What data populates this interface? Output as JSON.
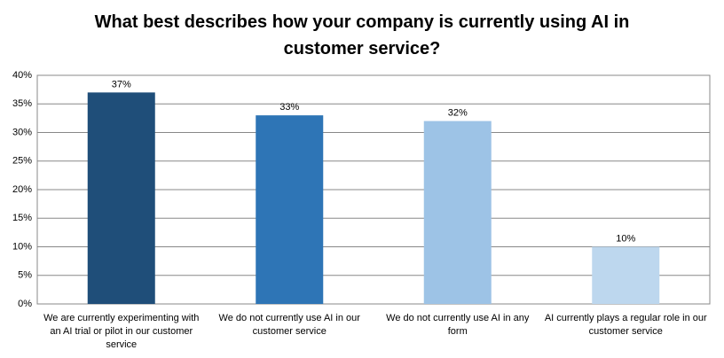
{
  "chart_data": {
    "type": "bar",
    "title": "What best describes how your company is currently using AI in customer service?",
    "categories": [
      "We are currently experimenting with an AI trial or pilot in our customer service",
      "We do not currently use AI in our customer service",
      "We do not currently use AI in any form",
      "AI currently plays a regular role in our customer service"
    ],
    "values": [
      37,
      33,
      32,
      10
    ],
    "value_labels": [
      "37%",
      "33%",
      "32%",
      "10%"
    ],
    "colors": [
      "#1f4e79",
      "#2e75b6",
      "#9dc3e6",
      "#bdd7ee"
    ],
    "ylim": [
      0,
      40
    ],
    "yticks": [
      {
        "value": 0,
        "label": "0%"
      },
      {
        "value": 5,
        "label": "5%"
      },
      {
        "value": 10,
        "label": "10%"
      },
      {
        "value": 15,
        "label": "15%"
      },
      {
        "value": 20,
        "label": "20%"
      },
      {
        "value": 25,
        "label": "25%"
      },
      {
        "value": 30,
        "label": "30%"
      },
      {
        "value": 35,
        "label": "35%"
      },
      {
        "value": 40,
        "label": "40%"
      }
    ],
    "grid": true
  }
}
